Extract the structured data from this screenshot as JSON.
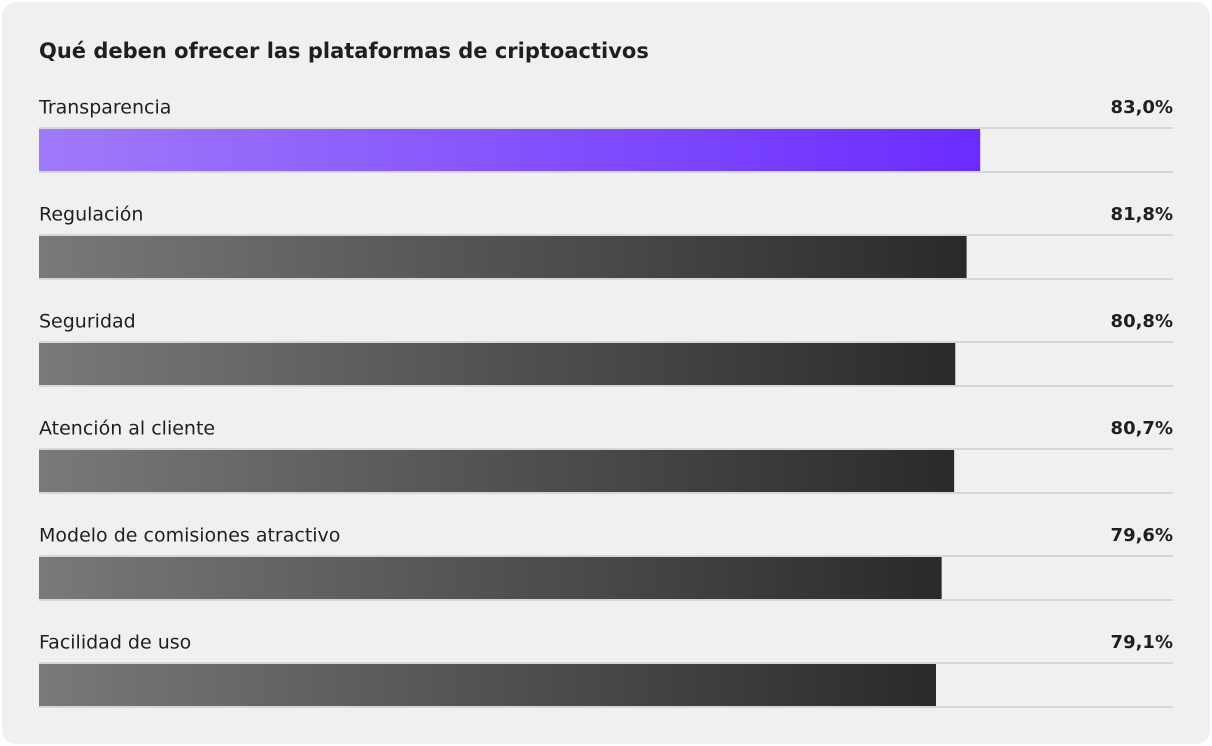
{
  "chart_data": {
    "type": "hbar",
    "title": "Qué deben ofrecer las plataformas de criptoactivos",
    "categories": [
      "Transparencia",
      "Regulación",
      "Seguridad",
      "Atención al cliente",
      "Modelo de comisiones atractivo",
      "Facilidad de uso"
    ],
    "values": [
      83.0,
      81.8,
      80.8,
      80.7,
      79.6,
      79.1
    ],
    "value_labels": [
      "83,0%",
      "81,8%",
      "80,8%",
      "80,7%",
      "79,6%",
      "79,1%"
    ],
    "colors": [
      "#6a2cff",
      "#2a2a2a",
      "#2a2a2a",
      "#2a2a2a",
      "#2a2a2a",
      "#2a2a2a"
    ],
    "xlim": [
      0,
      100
    ]
  }
}
